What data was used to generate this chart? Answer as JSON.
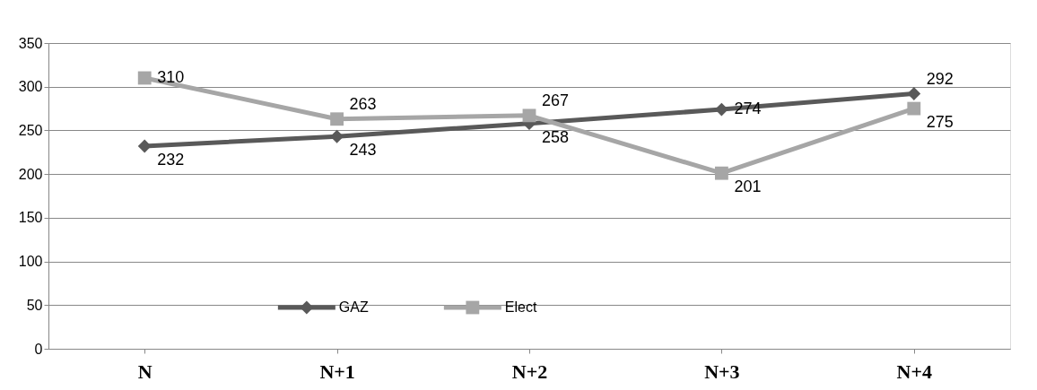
{
  "chart_data": {
    "type": "line",
    "categories": [
      "N",
      "N+1",
      "N+2",
      "N+3",
      "N+4"
    ],
    "series": [
      {
        "name": "GAZ",
        "color": "#595959",
        "marker": "diamond",
        "values": [
          232,
          243,
          258,
          274,
          292
        ]
      },
      {
        "name": "Elect",
        "color": "#a6a6a6",
        "marker": "square",
        "values": [
          310,
          263,
          267,
          201,
          275
        ]
      }
    ],
    "ylim": [
      0,
      350
    ],
    "yticks": [
      0,
      50,
      100,
      150,
      200,
      250,
      300,
      350
    ],
    "grid": "y",
    "legend": "bottom",
    "data_labels": true,
    "line_style": "solid"
  }
}
